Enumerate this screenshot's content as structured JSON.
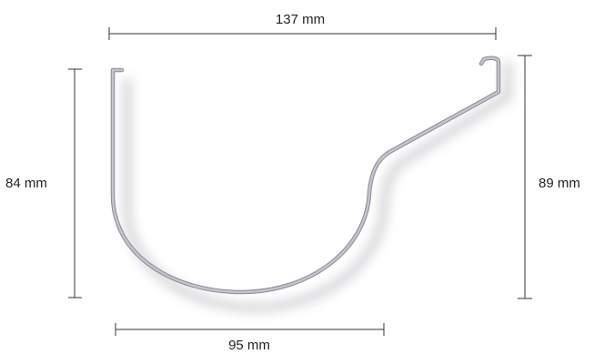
{
  "dimensions": {
    "top_width": "137 mm",
    "bottom_width": "95 mm",
    "left_height": "84 mm",
    "right_height": "89 mm"
  },
  "colors": {
    "profile": "#b9b9c3",
    "profile_edge": "#8a8a96",
    "shadow": "#c9c9cf",
    "dimension_line": "#333333",
    "label": "#222222"
  }
}
